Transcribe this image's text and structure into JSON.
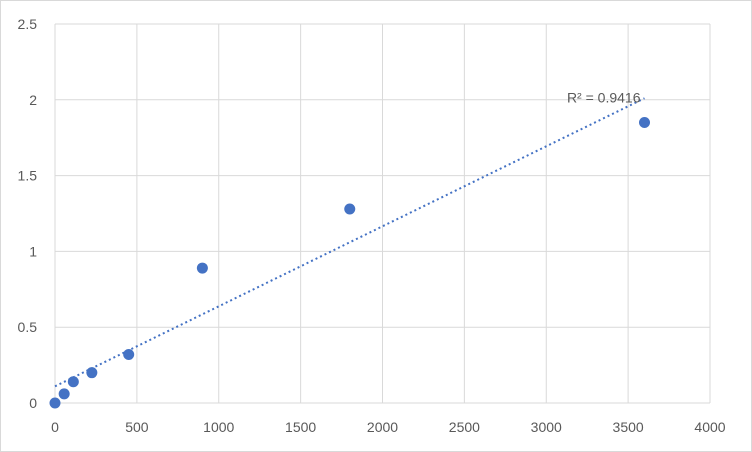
{
  "chart_data": {
    "type": "scatter",
    "title": "",
    "xlabel": "",
    "ylabel": "",
    "xlim": [
      0,
      4000
    ],
    "ylim": [
      0,
      2.5
    ],
    "x_ticks": [
      0,
      500,
      1000,
      1500,
      2000,
      2500,
      3000,
      3500,
      4000
    ],
    "y_ticks": [
      0,
      0.5,
      1,
      1.5,
      2,
      2.5
    ],
    "x_tick_labels": [
      "0",
      "500",
      "1000",
      "1500",
      "2000",
      "2500",
      "3000",
      "3500",
      "4000"
    ],
    "y_tick_labels": [
      "0",
      "0.5",
      "1",
      "1.5",
      "2",
      "2.5"
    ],
    "grid": true,
    "legend": "none",
    "series": [
      {
        "color": "#4472c4",
        "points": [
          {
            "x": 0,
            "y": 0.0
          },
          {
            "x": 56,
            "y": 0.06
          },
          {
            "x": 112,
            "y": 0.14
          },
          {
            "x": 225,
            "y": 0.2
          },
          {
            "x": 450,
            "y": 0.32
          },
          {
            "x": 900,
            "y": 0.89
          },
          {
            "x": 1800,
            "y": 1.28
          },
          {
            "x": 3600,
            "y": 1.85
          }
        ]
      }
    ],
    "trendline": {
      "type": "linear",
      "style": "dotted",
      "color": "#4472c4",
      "x_start": 0,
      "y_start": 0.11,
      "x_end": 3600,
      "y_end": 2.01,
      "label": "R² = 0.9416"
    }
  }
}
